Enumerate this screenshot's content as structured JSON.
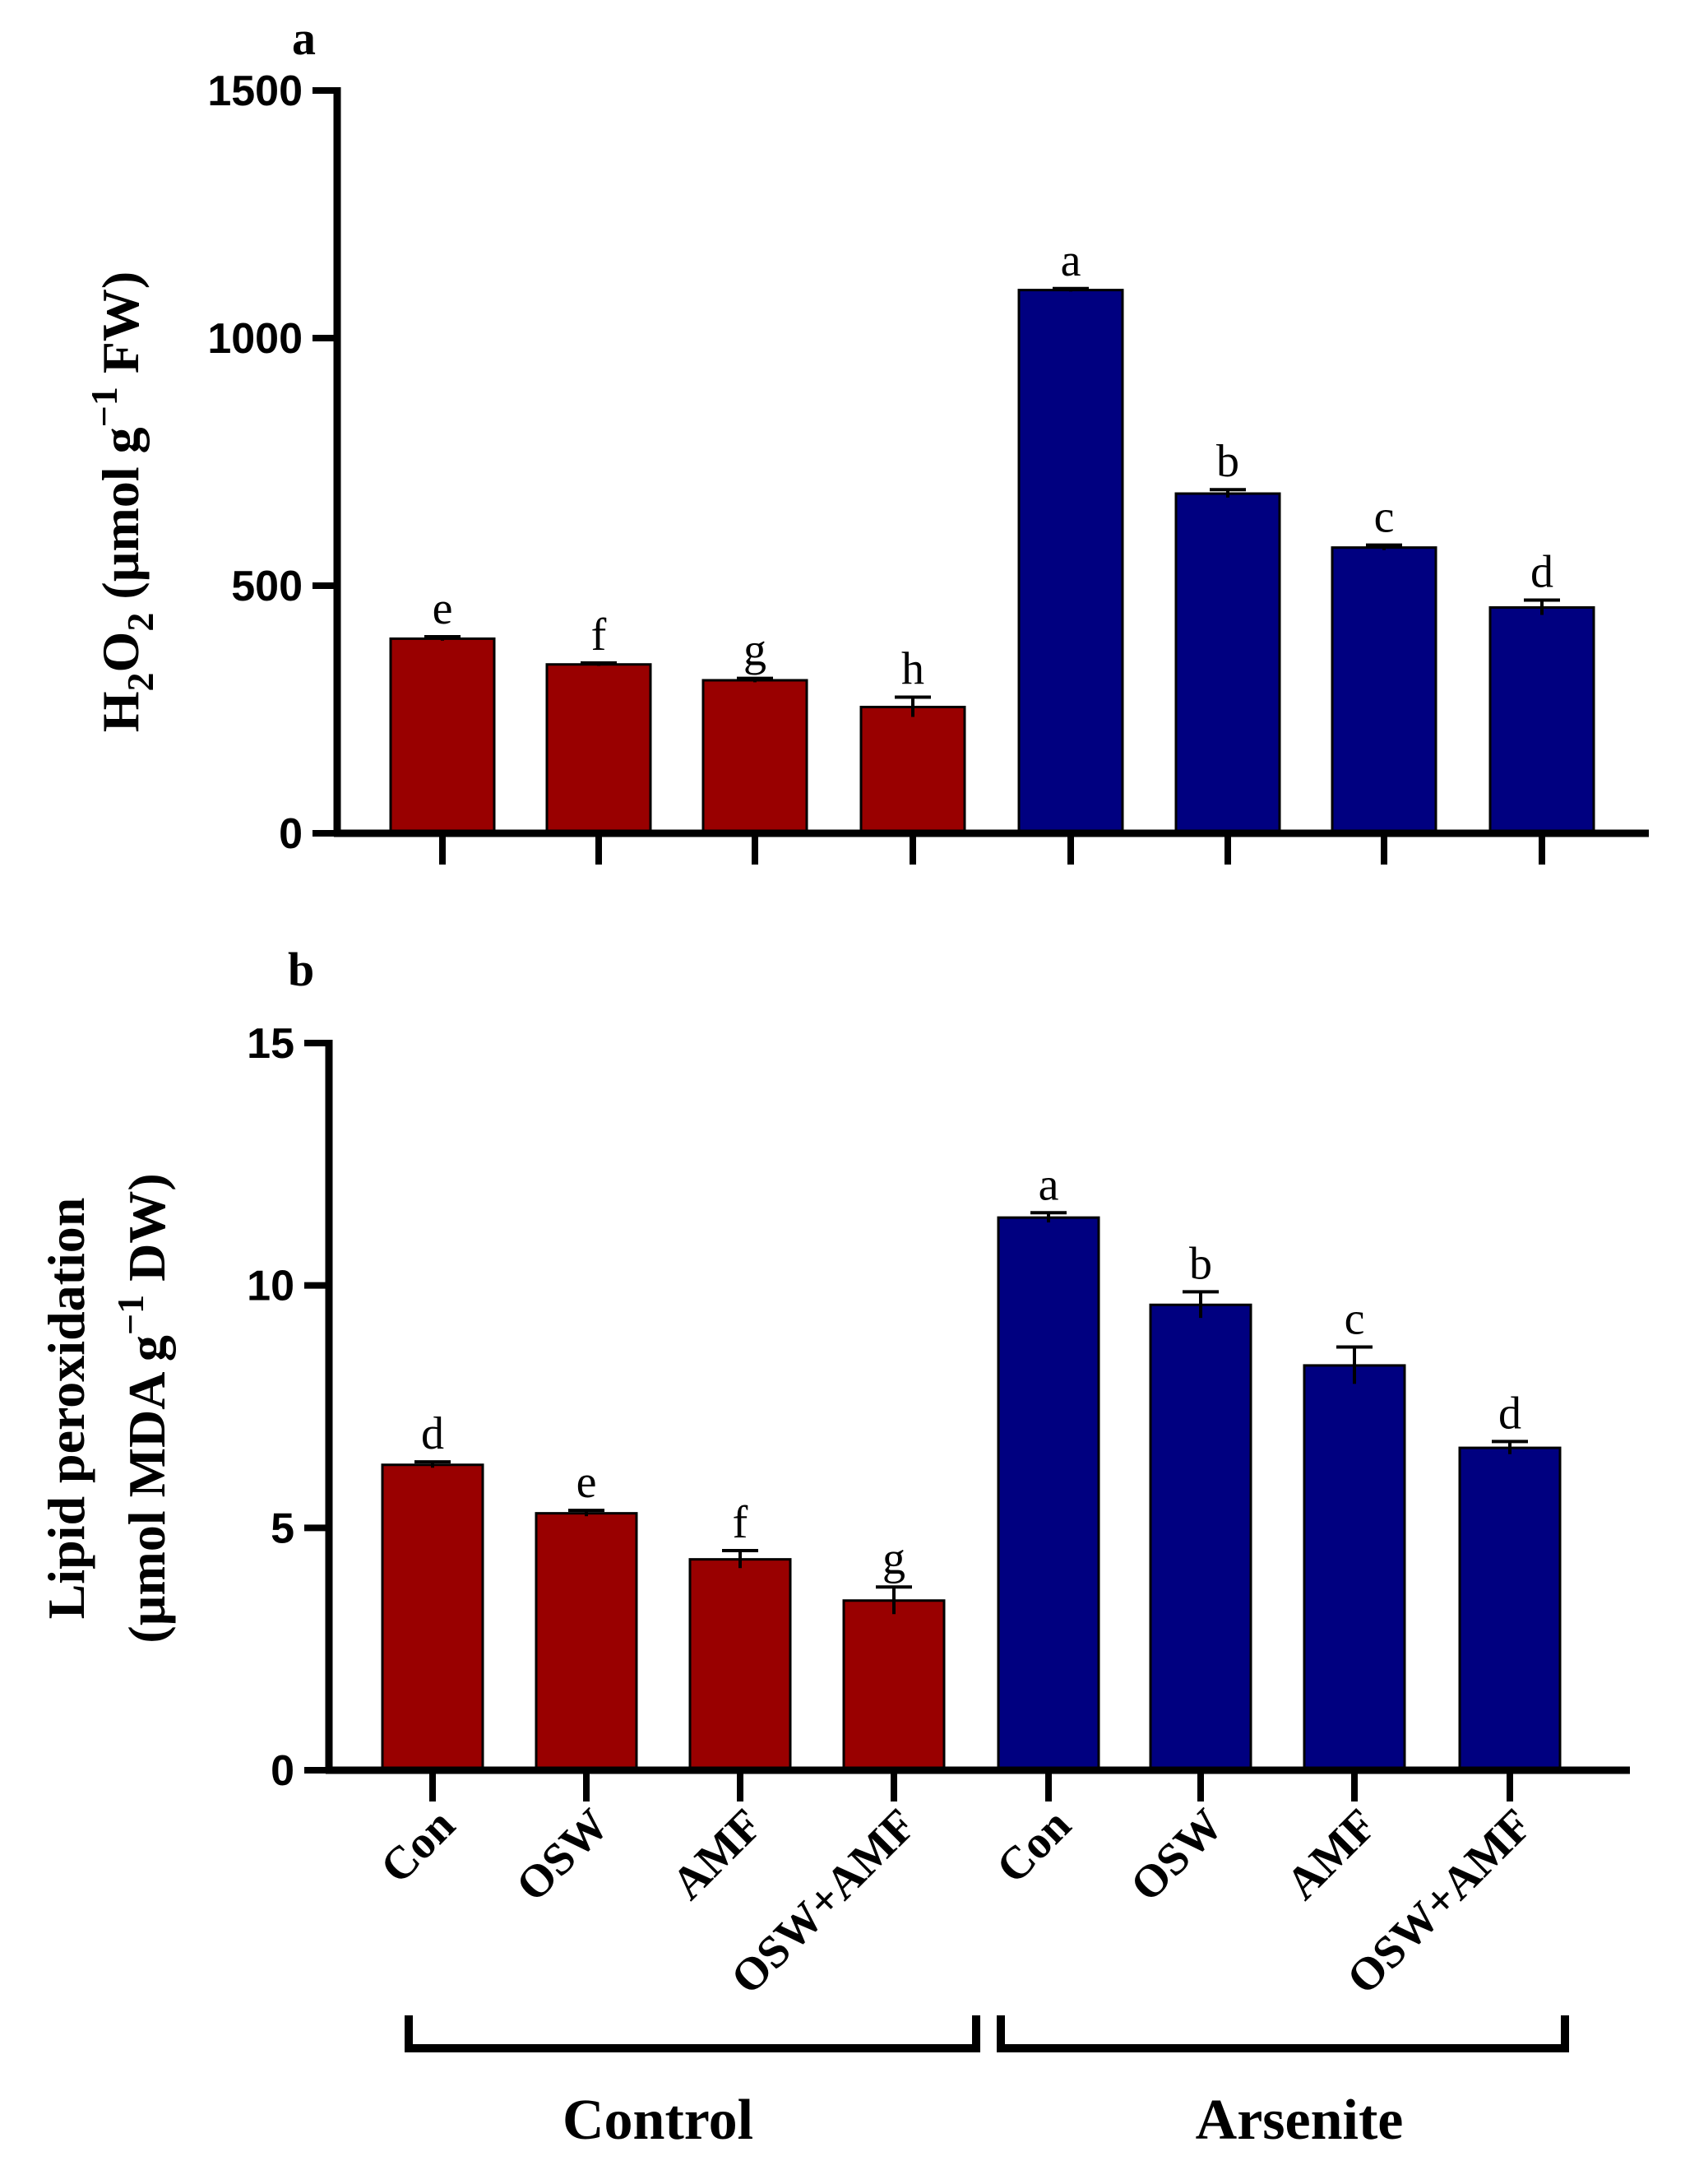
{
  "colors": {
    "control": "#990000",
    "arsenite": "#000080",
    "axis": "#000000"
  },
  "chart_data": [
    {
      "type": "bar",
      "panel": "a",
      "ylabel_main": "H",
      "ylabel_sub": "2",
      "ylabel_mid": "O",
      "ylabel_sub2": "2",
      "ylabel_rest": " (µmol g",
      "ylabel_sup": "−1",
      "ylabel_end": " FW)",
      "ylim": [
        0,
        1500
      ],
      "yticks": [
        0,
        500,
        1000,
        1500
      ],
      "ytick_labels": [
        "0",
        "500",
        "1000",
        "1500"
      ],
      "categories": [
        "Con",
        "OSW",
        "AMF",
        "OSW+AMF",
        "Con",
        "OSW",
        "AMF",
        "OSW+AMF"
      ],
      "groups": [
        "control",
        "control",
        "control",
        "control",
        "arsenite",
        "arsenite",
        "arsenite",
        "arsenite"
      ],
      "values": [
        393,
        341,
        309,
        255,
        1097,
        686,
        577,
        456
      ],
      "errors": [
        4,
        3,
        4,
        20,
        3,
        8,
        5,
        15
      ],
      "significance": [
        "e",
        "f",
        "g",
        "h",
        "a",
        "b",
        "c",
        "d"
      ]
    },
    {
      "type": "bar",
      "panel": "b",
      "ylabel_line1": "Lipid peroxidation",
      "ylabel_line2_start": "(µmol MDA g",
      "ylabel_line2_sup": "−1",
      "ylabel_line2_end": " DW)",
      "ylim": [
        0,
        15
      ],
      "yticks": [
        0,
        5,
        10,
        15
      ],
      "ytick_labels": [
        "0",
        "5",
        "10",
        "15"
      ],
      "categories": [
        "Con",
        "OSW",
        "AMF",
        "OSW+AMF",
        "Con",
        "OSW",
        "AMF",
        "OSW+AMF"
      ],
      "groups": [
        "control",
        "control",
        "control",
        "control",
        "arsenite",
        "arsenite",
        "arsenite",
        "arsenite"
      ],
      "values": [
        6.3,
        5.3,
        4.35,
        3.5,
        11.4,
        9.6,
        8.35,
        6.65
      ],
      "errors": [
        0.06,
        0.06,
        0.18,
        0.28,
        0.1,
        0.27,
        0.38,
        0.13
      ],
      "significance": [
        "d",
        "e",
        "f",
        "g",
        "a",
        "b",
        "c",
        "d"
      ]
    }
  ],
  "group_labels": {
    "control": "Control",
    "arsenite": "Arsenite"
  }
}
